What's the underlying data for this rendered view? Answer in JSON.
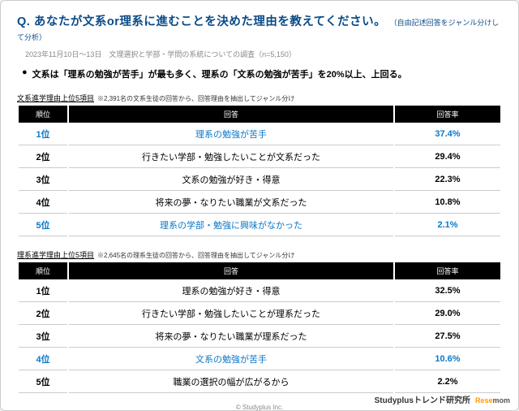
{
  "question": {
    "prefix": "Q. ",
    "text": "あなたが文系or理系に進むことを決めた理由を教えてください。",
    "note": "（自由記述回答をジャンル分けして分析）"
  },
  "subtitle": "2023年11月10日～13日　文理選択と学部・学問の系統についての調査（n=5,150）",
  "bullet": "文系は「理系の勉強が苦手」が最も多く、理系の「文系の勉強が苦手」を20%以上、上回る。",
  "tables": [
    {
      "caption": "文系進学理由上位5項目",
      "note": "※2,391名の文系生徒の回答から、回答理由を抽出してジャンル分け",
      "headers": {
        "rank": "順位",
        "answer": "回答",
        "pct": "回答率"
      },
      "rows": [
        {
          "rank": "1位",
          "answer": "理系の勉強が苦手",
          "pct": "37.4%",
          "highlight": true
        },
        {
          "rank": "2位",
          "answer": "行きたい学部・勉強したいことが文系だった",
          "pct": "29.4%",
          "highlight": false
        },
        {
          "rank": "3位",
          "answer": "文系の勉強が好き・得意",
          "pct": "22.3%",
          "highlight": false
        },
        {
          "rank": "4位",
          "answer": "将来の夢・なりたい職業が文系だった",
          "pct": "10.8%",
          "highlight": false
        },
        {
          "rank": "5位",
          "answer": "理系の学部・勉強に興味がなかった",
          "pct": "2.1%",
          "highlight": true
        }
      ]
    },
    {
      "caption": "理系進学理由上位5項目",
      "note": "※2,645名の理系生徒の回答から、回答理由を抽出してジャンル分け",
      "headers": {
        "rank": "順位",
        "answer": "回答",
        "pct": "回答率"
      },
      "rows": [
        {
          "rank": "1位",
          "answer": "理系の勉強が好き・得意",
          "pct": "32.5%",
          "highlight": false
        },
        {
          "rank": "2位",
          "answer": "行きたい学部・勉強したいことが理系だった",
          "pct": "29.0%",
          "highlight": false
        },
        {
          "rank": "3位",
          "answer": "将来の夢・なりたい職業が理系だった",
          "pct": "27.5%",
          "highlight": false
        },
        {
          "rank": "4位",
          "answer": "文系の勉強が苦手",
          "pct": "10.6%",
          "highlight": true
        },
        {
          "rank": "5位",
          "answer": "職業の選択の幅が広がるから",
          "pct": "2.2%",
          "highlight": false
        }
      ]
    }
  ],
  "copyright": "© Studyplus Inc.",
  "footer": {
    "brand": "Studyplusトレンド研究所",
    "rese": "Rese",
    "mom": "mom"
  }
}
